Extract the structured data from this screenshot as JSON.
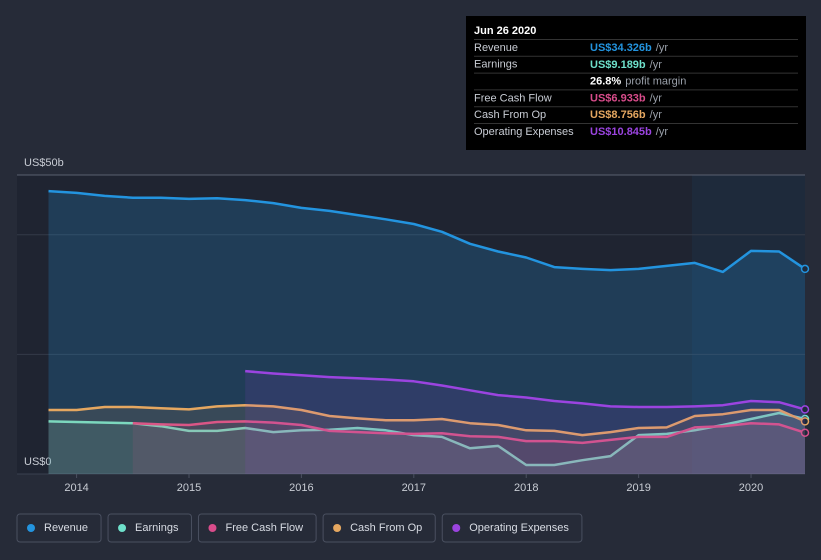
{
  "chart_data": {
    "type": "area",
    "x": [
      2013.75,
      2014.0,
      2014.25,
      2014.5,
      2014.75,
      2015.0,
      2015.25,
      2015.5,
      2015.75,
      2016.0,
      2016.25,
      2016.5,
      2016.75,
      2017.0,
      2017.25,
      2017.5,
      2017.75,
      2018.0,
      2018.25,
      2018.5,
      2018.75,
      2019.0,
      2019.25,
      2019.5,
      2019.75,
      2020.0,
      2020.25,
      2020.48
    ],
    "xlim": [
      2013.47,
      2020.48
    ],
    "xticks": [
      2014,
      2015,
      2016,
      2017,
      2018,
      2019,
      2020
    ],
    "ylim": [
      0,
      50
    ],
    "yticks": [
      {
        "value": 0,
        "label": "US$0"
      },
      {
        "value": 50,
        "label": "US$50b"
      }
    ],
    "ygrid": [
      20,
      40
    ],
    "grid": true,
    "series": [
      {
        "name": "Revenue",
        "color": "#2394df",
        "values": [
          47.3,
          47.0,
          46.5,
          46.2,
          46.2,
          46.0,
          46.1,
          45.8,
          45.3,
          44.5,
          44.0,
          43.3,
          42.6,
          41.8,
          40.5,
          38.5,
          37.2,
          36.2,
          34.6,
          34.3,
          34.1,
          34.3,
          34.8,
          35.3,
          33.8,
          37.3,
          37.2,
          34.3
        ]
      },
      {
        "name": "Earnings",
        "color": "#6ee0cb",
        "values": [
          8.8,
          8.7,
          8.6,
          8.5,
          8.0,
          7.2,
          7.2,
          7.7,
          7.0,
          7.3,
          7.4,
          7.7,
          7.3,
          6.5,
          6.2,
          4.3,
          4.7,
          1.5,
          1.5,
          2.3,
          3.0,
          6.5,
          6.7,
          7.3,
          8.2,
          9.2,
          10.2,
          9.2
        ]
      },
      {
        "name": "Free Cash Flow",
        "color": "#d94c8b",
        "values": [
          null,
          null,
          null,
          8.5,
          8.3,
          8.2,
          8.7,
          8.8,
          8.6,
          8.2,
          7.2,
          7.0,
          6.8,
          6.7,
          6.8,
          6.3,
          6.2,
          5.5,
          5.5,
          5.2,
          5.7,
          6.2,
          6.2,
          7.8,
          8.0,
          8.5,
          8.3,
          6.9
        ]
      },
      {
        "name": "Cash From Op",
        "color": "#e5a760",
        "values": [
          10.7,
          10.7,
          11.2,
          11.2,
          11.0,
          10.8,
          11.3,
          11.5,
          11.3,
          10.7,
          9.7,
          9.3,
          9.0,
          9.0,
          9.2,
          8.5,
          8.2,
          7.3,
          7.2,
          6.5,
          7.0,
          7.7,
          7.8,
          9.7,
          10.0,
          10.7,
          10.7,
          8.8
        ]
      },
      {
        "name": "Operating Expenses",
        "color": "#9b44e0",
        "values": [
          null,
          null,
          null,
          null,
          null,
          null,
          null,
          17.2,
          16.8,
          16.5,
          16.2,
          16.0,
          15.8,
          15.5,
          14.8,
          14.0,
          13.2,
          12.8,
          12.2,
          11.8,
          11.3,
          11.2,
          11.2,
          11.3,
          11.5,
          12.2,
          12.0,
          10.8
        ]
      }
    ]
  },
  "tooltip": {
    "date": "Jun 26 2020",
    "rows": [
      {
        "label": "Revenue",
        "value": "US$34.326b",
        "unit": "/yr",
        "color": "#2394df"
      },
      {
        "label": "Earnings",
        "value": "US$9.189b",
        "unit": "/yr",
        "color": "#6ee0cb"
      },
      {
        "value": "26.8%",
        "unit": "profit margin",
        "color": "#ffffff"
      },
      {
        "label": "Free Cash Flow",
        "value": "US$6.933b",
        "unit": "/yr",
        "color": "#d94c8b"
      },
      {
        "label": "Cash From Op",
        "value": "US$8.756b",
        "unit": "/yr",
        "color": "#e5a760"
      },
      {
        "label": "Operating Expenses",
        "value": "US$10.845b",
        "unit": "/yr",
        "color": "#9b44e0"
      }
    ]
  }
}
